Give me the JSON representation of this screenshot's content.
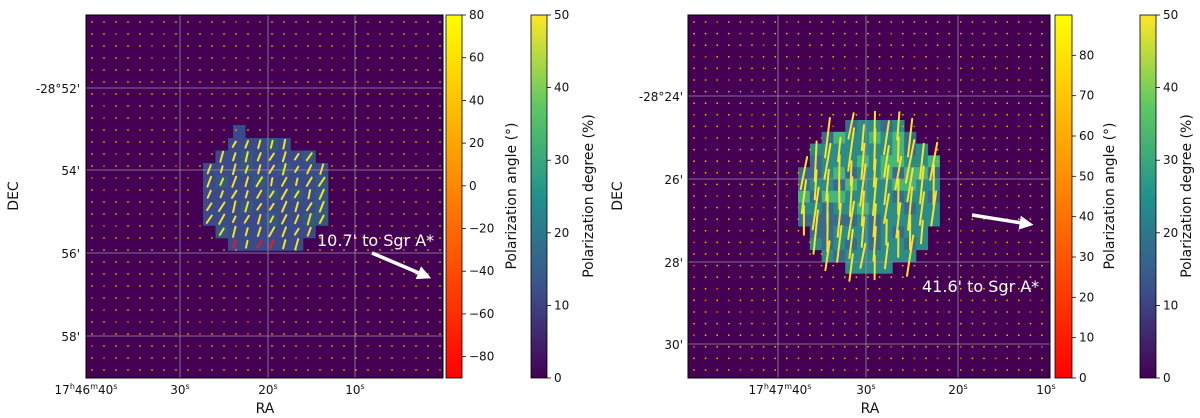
{
  "chart_data": [
    {
      "type": "heatmap",
      "xlabel": "RA",
      "ylabel": "DEC",
      "x_ticks": [
        {
          "main": "17",
          "sup1": "h",
          "mid": "46",
          "sup2": "m",
          "tail": "40",
          "sup3": "s"
        },
        {
          "main": "30",
          "sup1": "s"
        },
        {
          "main": "20",
          "sup1": "s"
        },
        {
          "main": "10",
          "sup1": "s"
        }
      ],
      "y_ticks": [
        "-28°52'",
        "54'",
        "56'",
        "58'"
      ],
      "grid": true,
      "background_color": "#440154",
      "annotation": {
        "text": "10.7' to Sgr A*"
      },
      "colorbars": [
        {
          "label": "Polarization angle (°)",
          "range": [
            -90,
            80
          ],
          "ticks": [
            "80",
            "60",
            "40",
            "20",
            "0",
            "−20",
            "−40",
            "−60",
            "−80"
          ],
          "colormap": "autumn"
        },
        {
          "label": "Polarization degree (%)",
          "range": [
            0,
            50
          ],
          "ticks": [
            "50",
            "40",
            "30",
            "20",
            "10",
            "0"
          ],
          "colormap": "viridis"
        }
      ]
    },
    {
      "type": "heatmap",
      "xlabel": "RA",
      "ylabel": "DEC",
      "x_ticks": [
        {
          "main": "17",
          "sup1": "h",
          "mid": "47",
          "sup2": "m",
          "tail": "40",
          "sup3": "s"
        },
        {
          "main": "30",
          "sup1": "s"
        },
        {
          "main": "20",
          "sup1": "s"
        },
        {
          "main": "10",
          "sup1": "s"
        }
      ],
      "y_ticks": [
        "-28°24'",
        "26'",
        "28'",
        "30'"
      ],
      "grid": true,
      "background_color": "#440154",
      "annotation": {
        "text": "41.6' to Sgr A*"
      },
      "colorbars": [
        {
          "label": "Polarization angle (°)",
          "range": [
            0,
            90
          ],
          "ticks": [
            "80",
            "70",
            "60",
            "50",
            "40",
            "30",
            "20",
            "10",
            "0"
          ],
          "colormap": "autumn"
        },
        {
          "label": "Polarization degree (%)",
          "range": [
            0,
            50
          ],
          "ticks": [
            "50",
            "40",
            "30",
            "20",
            "10",
            "0"
          ],
          "colormap": "viridis"
        }
      ]
    }
  ]
}
